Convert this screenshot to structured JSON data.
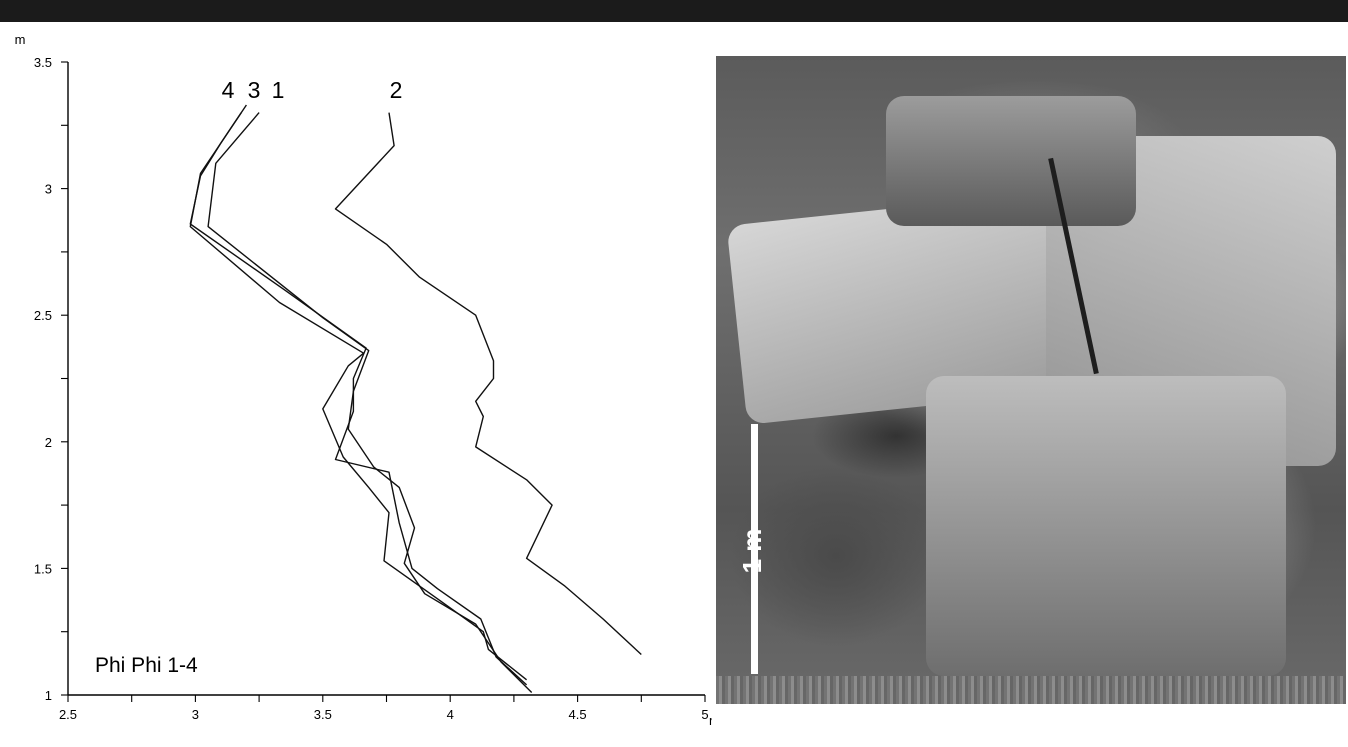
{
  "chart_data": {
    "type": "line",
    "title": "",
    "xlabel": "",
    "ylabel": "",
    "x_unit": "m",
    "y_unit": "m",
    "xlim": [
      2.5,
      5
    ],
    "ylim": [
      1,
      3.5
    ],
    "x_ticks": [
      "2.5",
      "3",
      "3.5",
      "4",
      "4.5",
      "5"
    ],
    "y_ticks": [
      "1",
      "1.5",
      "2",
      "2.5",
      "3",
      "3.5"
    ],
    "annotation": "Phi Phi 1-4",
    "label_order": [
      "4",
      "3",
      "1",
      "2"
    ],
    "grid": false,
    "series": [
      {
        "name": "1",
        "points": [
          [
            4.32,
            1.01
          ],
          [
            4.2,
            1.13
          ],
          [
            4.1,
            1.28
          ],
          [
            3.9,
            1.4
          ],
          [
            3.82,
            1.52
          ],
          [
            3.86,
            1.66
          ],
          [
            3.8,
            1.82
          ],
          [
            3.7,
            1.9
          ],
          [
            3.6,
            2.05
          ],
          [
            3.62,
            2.2
          ],
          [
            3.68,
            2.36
          ],
          [
            3.5,
            2.49
          ],
          [
            3.05,
            2.85
          ],
          [
            3.08,
            3.1
          ],
          [
            3.25,
            3.3
          ]
        ]
      },
      {
        "name": "2",
        "points": [
          [
            4.75,
            1.16
          ],
          [
            4.6,
            1.3
          ],
          [
            4.45,
            1.43
          ],
          [
            4.3,
            1.54
          ],
          [
            4.4,
            1.75
          ],
          [
            4.3,
            1.85
          ],
          [
            4.1,
            1.98
          ],
          [
            4.13,
            2.1
          ],
          [
            4.1,
            2.16
          ],
          [
            4.17,
            2.25
          ],
          [
            4.17,
            2.32
          ],
          [
            4.1,
            2.5
          ],
          [
            3.88,
            2.65
          ],
          [
            3.75,
            2.78
          ],
          [
            3.55,
            2.92
          ],
          [
            3.78,
            3.17
          ],
          [
            3.76,
            3.3
          ]
        ]
      },
      {
        "name": "3",
        "points": [
          [
            4.3,
            1.04
          ],
          [
            4.18,
            1.15
          ],
          [
            4.12,
            1.3
          ],
          [
            3.95,
            1.42
          ],
          [
            3.85,
            1.5
          ],
          [
            3.8,
            1.68
          ],
          [
            3.76,
            1.88
          ],
          [
            3.55,
            1.93
          ],
          [
            3.62,
            2.12
          ],
          [
            3.62,
            2.25
          ],
          [
            3.67,
            2.37
          ],
          [
            3.35,
            2.6
          ],
          [
            2.98,
            2.86
          ],
          [
            3.02,
            3.05
          ],
          [
            3.1,
            3.18
          ],
          [
            3.18,
            3.3
          ]
        ]
      },
      {
        "name": "4",
        "points": [
          [
            4.3,
            1.06
          ],
          [
            4.15,
            1.18
          ],
          [
            4.13,
            1.25
          ],
          [
            3.95,
            1.38
          ],
          [
            3.74,
            1.53
          ],
          [
            3.76,
            1.72
          ],
          [
            3.68,
            1.82
          ],
          [
            3.58,
            1.94
          ],
          [
            3.5,
            2.13
          ],
          [
            3.6,
            2.3
          ],
          [
            3.66,
            2.35
          ],
          [
            3.33,
            2.55
          ],
          [
            2.98,
            2.85
          ],
          [
            3.02,
            3.06
          ],
          [
            3.08,
            3.15
          ],
          [
            3.2,
            3.33
          ]
        ]
      }
    ]
  },
  "photo": {
    "scale_label": "1 m"
  }
}
